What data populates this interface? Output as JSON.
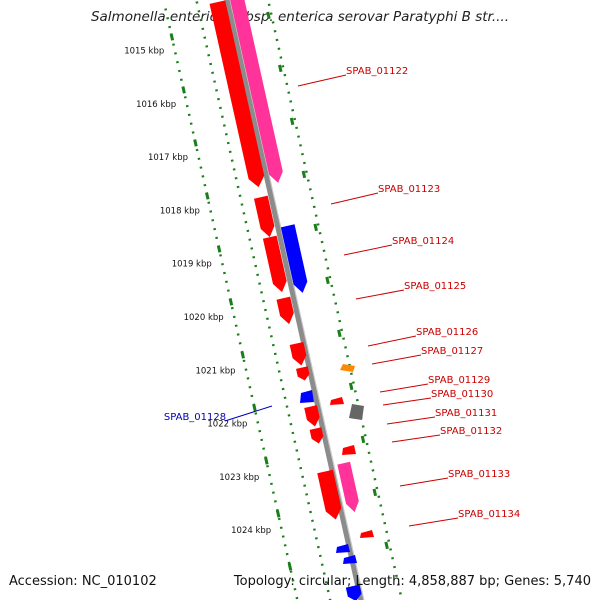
{
  "title": "Salmonella enterica subsp. enterica serovar Paratyphi B str....",
  "footer": {
    "accession": "Accession: NC_010102",
    "summary": "Topology: circular; Length: 4,858,887 bp; Genes: 5,740"
  },
  "colors": {
    "cds_red": "#ff0000",
    "cds_pink": "#ff3399",
    "cds_blue": "#0000ff",
    "cds_orange": "#ff8800",
    "cds_gray": "#666666",
    "backbone": "#8c8c8c",
    "tick_green": "#1a7f1a",
    "label_red": "#cc0000",
    "label_blue": "#0000bb"
  },
  "scale_labels": [
    "1015 kbp",
    "1016 kbp",
    "1017 kbp",
    "1018 kbp",
    "1019 kbp",
    "1020 kbp",
    "1021 kbp",
    "1022 kbp",
    "1023 kbp",
    "1024 kbp"
  ],
  "gene_labels": [
    {
      "text": "SPAB_01122",
      "side": "right"
    },
    {
      "text": "SPAB_01123",
      "side": "right"
    },
    {
      "text": "SPAB_01124",
      "side": "right"
    },
    {
      "text": "SPAB_01125",
      "side": "right"
    },
    {
      "text": "SPAB_01126",
      "side": "right"
    },
    {
      "text": "SPAB_01127",
      "side": "right"
    },
    {
      "text": "SPAB_01128",
      "side": "left"
    },
    {
      "text": "SPAB_01129",
      "side": "right"
    },
    {
      "text": "SPAB_01130",
      "side": "right"
    },
    {
      "text": "SPAB_01131",
      "side": "right"
    },
    {
      "text": "SPAB_01132",
      "side": "right"
    },
    {
      "text": "SPAB_01133",
      "side": "right"
    },
    {
      "text": "SPAB_01134",
      "side": "right"
    }
  ]
}
